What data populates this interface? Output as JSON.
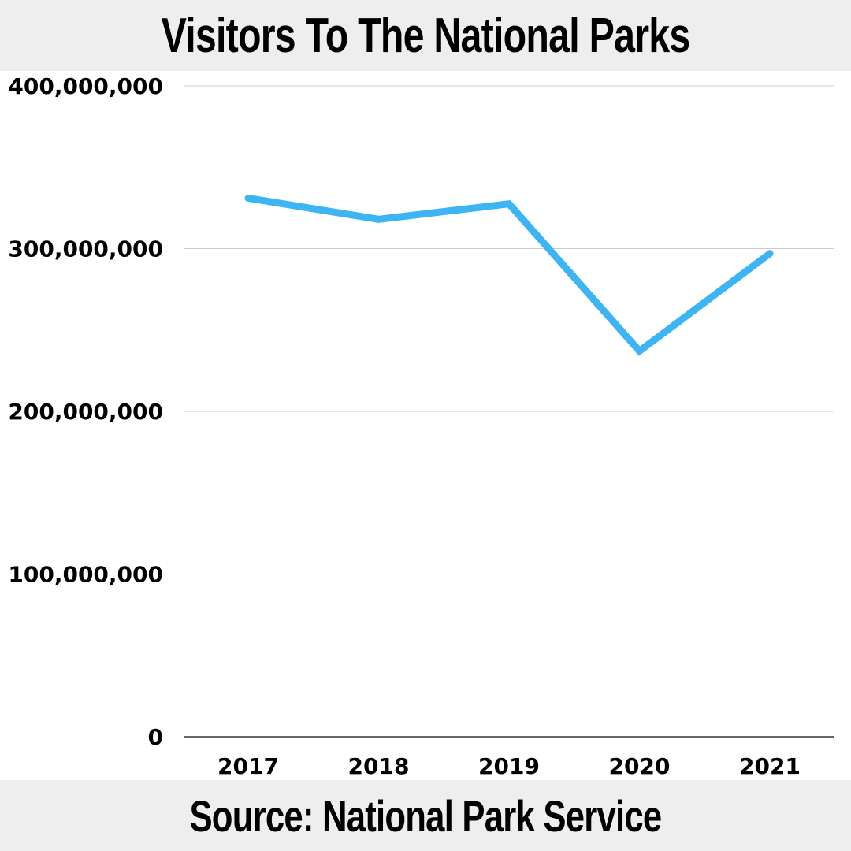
{
  "header": {
    "title": "Visitors To The National Parks"
  },
  "footer": {
    "source": "Source:  National Park Service"
  },
  "colors": {
    "line": "#3db5f5",
    "grid": "#cccccc",
    "axis": "#333333",
    "band": "#eeeeee"
  },
  "chart_data": {
    "type": "line",
    "title": "Visitors To The National Parks",
    "xlabel": "",
    "ylabel": "",
    "categories": [
      "2017",
      "2018",
      "2019",
      "2020",
      "2021"
    ],
    "series": [
      {
        "values": [
          331000000,
          318000000,
          327500000,
          237000000,
          297000000
        ]
      }
    ],
    "ylim": [
      0,
      400000000
    ],
    "yticks": [
      0,
      100000000,
      200000000,
      300000000,
      400000000
    ],
    "ytick_labels": [
      "0",
      "100,000,000",
      "200,000,000",
      "300,000,000",
      "400,000,000"
    ],
    "grid": true,
    "legend": "none"
  }
}
